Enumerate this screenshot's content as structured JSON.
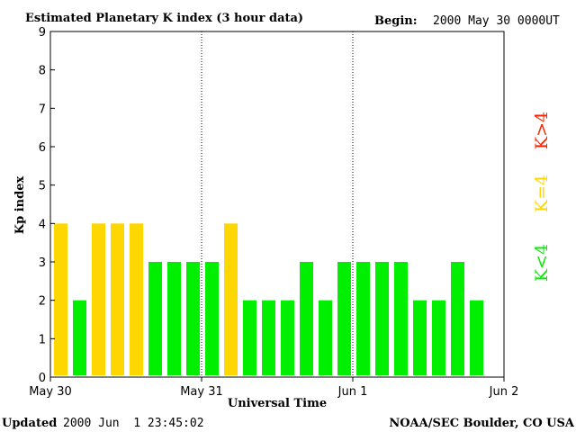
{
  "chart_data": {
    "type": "bar",
    "title": "Estimated Planetary K index (3 hour data)",
    "begin_label": "Begin:",
    "begin_value": "2000 May 30 0000UT",
    "ylabel": "Kp index",
    "xlabel": "Universal Time",
    "ylim": [
      0,
      9
    ],
    "yticks": [
      "0",
      "1",
      "2",
      "3",
      "4",
      "5",
      "6",
      "7",
      "8",
      "9"
    ],
    "xticks": [
      {
        "label": "May 30",
        "day": 0
      },
      {
        "label": "May 31",
        "day": 1
      },
      {
        "label": "Jun 1",
        "day": 2
      },
      {
        "label": "Jun 2",
        "day": 3
      }
    ],
    "values": [
      4,
      2,
      4,
      4,
      4,
      3,
      3,
      3,
      3,
      4,
      2,
      2,
      2,
      3,
      2,
      3,
      3,
      3,
      3,
      2,
      2,
      3,
      2
    ],
    "colors": {
      "below_4": "#00ee00",
      "equal_4": "#ffd700",
      "above_4": "#ff2200"
    },
    "legend": [
      {
        "label": "K>4",
        "class": "above_4"
      },
      {
        "label": "K=4",
        "class": "equal_4"
      },
      {
        "label": "K<4",
        "class": "below_4"
      }
    ],
    "updated_label": "Updated",
    "updated_value": "2000 Jun  1 23:45:02",
    "source": "NOAA/SEC Boulder, CO USA"
  }
}
